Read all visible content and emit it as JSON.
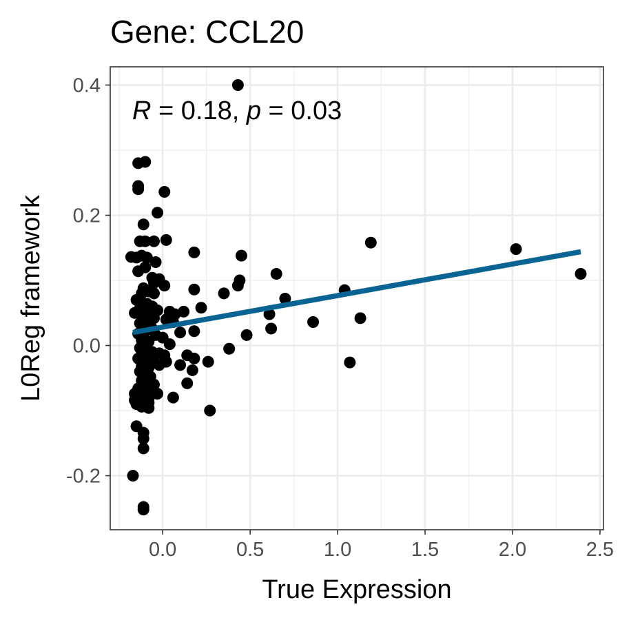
{
  "chart_data": {
    "type": "scatter",
    "title": "Gene: CCL20",
    "xlabel": "True Expression",
    "ylabel": "L0Reg framework",
    "xlim": [
      -0.3,
      2.52
    ],
    "ylim": [
      -0.283,
      0.428
    ],
    "x_ticks": [
      0.0,
      0.5,
      1.0,
      1.5,
      2.0,
      2.5
    ],
    "x_tick_labels": [
      "0.0",
      "0.5",
      "1.0",
      "1.5",
      "2.0",
      "2.5"
    ],
    "y_ticks": [
      -0.2,
      0.0,
      0.2,
      0.4
    ],
    "y_tick_labels": [
      "-0.2",
      "0.0",
      "0.2",
      "0.4"
    ],
    "grid": true,
    "annotation": {
      "r_symbol": "R",
      "r_value": " = 0.18, ",
      "p_symbol": "p",
      "p_value": " = 0.03"
    },
    "point_color": "#000000",
    "line_color": "#0a6493",
    "regression_line": {
      "x": [
        -0.17,
        2.39
      ],
      "y": [
        0.02,
        0.144
      ]
    },
    "points": [
      [
        0.43,
        0.4
      ],
      [
        -0.14,
        0.28
      ],
      [
        -0.1,
        0.282
      ],
      [
        -0.14,
        0.245
      ],
      [
        -0.14,
        0.24
      ],
      [
        0.01,
        0.236
      ],
      [
        -0.03,
        0.204
      ],
      [
        -0.11,
        0.186
      ],
      [
        -0.13,
        0.16
      ],
      [
        -0.1,
        0.16
      ],
      [
        -0.05,
        0.16
      ],
      [
        0.02,
        0.162
      ],
      [
        -0.18,
        0.136
      ],
      [
        -0.15,
        0.135
      ],
      [
        -0.12,
        0.138
      ],
      [
        -0.09,
        0.135
      ],
      [
        -0.04,
        0.128
      ],
      [
        -0.1,
        0.12
      ],
      [
        -0.14,
        0.114
      ],
      [
        -0.06,
        0.104
      ],
      [
        -0.02,
        0.102
      ],
      [
        -0.05,
        0.096
      ],
      [
        0.01,
        0.092
      ],
      [
        -0.11,
        0.088
      ],
      [
        -0.08,
        0.083
      ],
      [
        -0.05,
        0.08
      ],
      [
        -0.12,
        0.08
      ],
      [
        -0.15,
        0.07
      ],
      [
        -0.12,
        0.066
      ],
      [
        -0.09,
        0.064
      ],
      [
        -0.06,
        0.06
      ],
      [
        -0.13,
        0.057
      ],
      [
        -0.1,
        0.054
      ],
      [
        -0.03,
        0.054
      ],
      [
        0.04,
        0.052
      ],
      [
        -0.16,
        0.05
      ],
      [
        -0.12,
        0.046
      ],
      [
        -0.08,
        0.044
      ],
      [
        -0.05,
        0.042
      ],
      [
        0.02,
        0.04
      ],
      [
        -0.13,
        0.034
      ],
      [
        -0.09,
        0.03
      ],
      [
        -0.06,
        0.026
      ],
      [
        -0.1,
        0.022
      ],
      [
        -0.14,
        0.018
      ],
      [
        -0.04,
        0.016
      ],
      [
        0.0,
        0.012
      ],
      [
        -0.12,
        0.008
      ],
      [
        -0.08,
        0.006
      ],
      [
        0.04,
        0.002
      ],
      [
        -0.13,
        -0.004
      ],
      [
        -0.1,
        -0.008
      ],
      [
        -0.06,
        -0.01
      ],
      [
        -0.02,
        -0.012
      ],
      [
        0.01,
        -0.015
      ],
      [
        -0.14,
        -0.02
      ],
      [
        -0.1,
        -0.022
      ],
      [
        -0.05,
        -0.026
      ],
      [
        0.02,
        -0.025
      ],
      [
        -0.12,
        -0.032
      ],
      [
        -0.08,
        -0.034
      ],
      [
        -0.02,
        -0.03
      ],
      [
        -0.13,
        -0.04
      ],
      [
        -0.1,
        -0.044
      ],
      [
        -0.07,
        -0.048
      ],
      [
        -0.12,
        -0.054
      ],
      [
        -0.08,
        -0.056
      ],
      [
        -0.05,
        -0.06
      ],
      [
        -0.14,
        -0.066
      ],
      [
        -0.1,
        -0.068
      ],
      [
        -0.06,
        -0.07
      ],
      [
        -0.03,
        -0.074
      ],
      [
        -0.16,
        -0.074
      ],
      [
        -0.12,
        -0.078
      ],
      [
        -0.08,
        -0.082
      ],
      [
        -0.16,
        -0.084
      ],
      [
        -0.12,
        -0.086
      ],
      [
        -0.08,
        -0.088
      ],
      [
        -0.15,
        -0.09
      ],
      [
        -0.12,
        -0.094
      ],
      [
        -0.08,
        -0.096
      ],
      [
        -0.15,
        -0.124
      ],
      [
        -0.11,
        -0.134
      ],
      [
        -0.11,
        -0.143
      ],
      [
        -0.11,
        -0.158
      ],
      [
        -0.17,
        -0.2
      ],
      [
        -0.11,
        -0.248
      ],
      [
        -0.11,
        -0.252
      ],
      [
        0.18,
        0.143
      ],
      [
        0.45,
        0.138
      ],
      [
        0.44,
        0.1
      ],
      [
        0.43,
        0.092
      ],
      [
        0.65,
        0.11
      ],
      [
        0.35,
        0.08
      ],
      [
        0.18,
        0.086
      ],
      [
        0.22,
        0.058
      ],
      [
        0.12,
        0.052
      ],
      [
        0.07,
        0.048
      ],
      [
        0.18,
        0.022
      ],
      [
        0.1,
        0.02
      ],
      [
        0.06,
        0.036
      ],
      [
        0.14,
        -0.015
      ],
      [
        0.18,
        -0.02
      ],
      [
        0.26,
        -0.025
      ],
      [
        0.17,
        -0.038
      ],
      [
        0.1,
        -0.03
      ],
      [
        0.14,
        -0.058
      ],
      [
        0.06,
        -0.08
      ],
      [
        0.27,
        -0.1
      ],
      [
        0.38,
        -0.005
      ],
      [
        0.48,
        0.016
      ],
      [
        0.61,
        0.048
      ],
      [
        0.62,
        0.026
      ],
      [
        0.7,
        0.072
      ],
      [
        0.86,
        0.036
      ],
      [
        1.04,
        0.085
      ],
      [
        1.07,
        -0.026
      ],
      [
        1.13,
        0.042
      ],
      [
        1.19,
        0.158
      ],
      [
        2.02,
        0.148
      ],
      [
        2.39,
        0.11
      ]
    ]
  }
}
